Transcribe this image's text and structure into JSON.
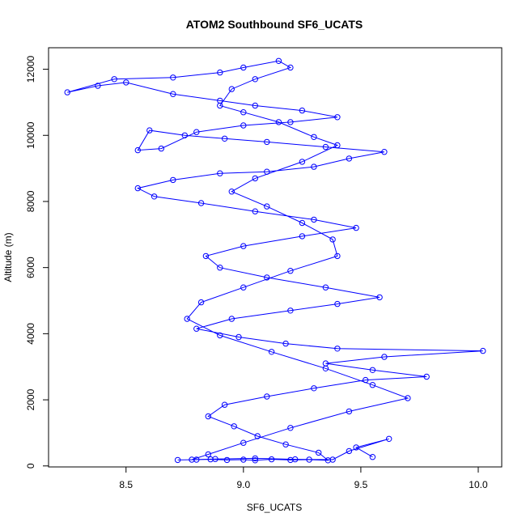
{
  "chart_data": {
    "type": "scatter",
    "title": "ATOM2 Southbound SF6_UCATS",
    "xlabel": "SF6_UCATS",
    "ylabel": "Altitude (m)",
    "xlim": [
      8.17,
      10.1
    ],
    "ylim": [
      -30,
      12650
    ],
    "x_ticks": [
      8.5,
      9.0,
      9.5,
      10.0
    ],
    "x_tick_labels": [
      "8.5",
      "9.0",
      "9.5",
      "10.0"
    ],
    "y_ticks": [
      0,
      2000,
      4000,
      6000,
      8000,
      10000,
      12000
    ],
    "y_tick_labels": [
      "0",
      "2000",
      "4000",
      "6000",
      "8000",
      "10000",
      "12000"
    ],
    "grid": false,
    "marker": "open-circle",
    "connected": true,
    "color": "#0000ff",
    "series": [
      {
        "points": [
          [
            8.72,
            180
          ],
          [
            8.8,
            190
          ],
          [
            8.86,
            200
          ],
          [
            8.93,
            180
          ],
          [
            9.0,
            190
          ],
          [
            9.05,
            170
          ],
          [
            9.12,
            200
          ],
          [
            9.2,
            180
          ],
          [
            9.28,
            190
          ],
          [
            9.36,
            170
          ],
          [
            9.32,
            400
          ],
          [
            9.18,
            650
          ],
          [
            9.06,
            900
          ],
          [
            8.96,
            1200
          ],
          [
            8.85,
            1500
          ],
          [
            8.92,
            1850
          ],
          [
            9.1,
            2100
          ],
          [
            9.3,
            2350
          ],
          [
            9.52,
            2600
          ],
          [
            9.78,
            2700
          ],
          [
            9.55,
            2900
          ],
          [
            9.35,
            3100
          ],
          [
            9.6,
            3300
          ],
          [
            10.02,
            3480
          ],
          [
            9.4,
            3550
          ],
          [
            9.18,
            3700
          ],
          [
            8.98,
            3900
          ],
          [
            8.8,
            4150
          ],
          [
            8.95,
            4450
          ],
          [
            9.2,
            4700
          ],
          [
            9.4,
            4900
          ],
          [
            9.58,
            5100
          ],
          [
            9.35,
            5400
          ],
          [
            9.1,
            5700
          ],
          [
            8.9,
            6000
          ],
          [
            8.84,
            6350
          ],
          [
            9.0,
            6650
          ],
          [
            9.25,
            6950
          ],
          [
            9.48,
            7200
          ],
          [
            9.3,
            7450
          ],
          [
            9.05,
            7700
          ],
          [
            8.82,
            7950
          ],
          [
            8.62,
            8150
          ],
          [
            8.55,
            8400
          ],
          [
            8.7,
            8650
          ],
          [
            8.9,
            8850
          ],
          [
            9.1,
            8900
          ],
          [
            9.3,
            9050
          ],
          [
            9.45,
            9300
          ],
          [
            9.6,
            9500
          ],
          [
            9.35,
            9650
          ],
          [
            9.1,
            9800
          ],
          [
            8.92,
            9900
          ],
          [
            8.75,
            10000
          ],
          [
            8.6,
            10150
          ],
          [
            8.55,
            9550
          ],
          [
            8.65,
            9600
          ],
          [
            8.8,
            10100
          ],
          [
            9.0,
            10300
          ],
          [
            9.2,
            10400
          ],
          [
            9.4,
            10550
          ],
          [
            9.25,
            10750
          ],
          [
            9.05,
            10900
          ],
          [
            8.9,
            11050
          ],
          [
            8.7,
            11250
          ],
          [
            8.5,
            11600
          ],
          [
            8.38,
            11500
          ],
          [
            8.25,
            11300
          ],
          [
            8.45,
            11700
          ],
          [
            8.7,
            11750
          ],
          [
            8.9,
            11900
          ],
          [
            9.0,
            12050
          ],
          [
            9.15,
            12250
          ],
          [
            9.2,
            12050
          ],
          [
            9.05,
            11700
          ],
          [
            8.95,
            11400
          ],
          [
            8.9,
            10900
          ],
          [
            9.0,
            10700
          ],
          [
            9.15,
            10400
          ],
          [
            9.3,
            9950
          ],
          [
            9.4,
            9700
          ],
          [
            9.25,
            9200
          ],
          [
            9.05,
            8700
          ],
          [
            8.95,
            8300
          ],
          [
            9.1,
            7850
          ],
          [
            9.25,
            7350
          ],
          [
            9.38,
            6850
          ],
          [
            9.4,
            6350
          ],
          [
            9.2,
            5900
          ],
          [
            9.0,
            5400
          ],
          [
            8.82,
            4950
          ],
          [
            8.76,
            4450
          ],
          [
            8.9,
            3950
          ],
          [
            9.12,
            3450
          ],
          [
            9.35,
            2950
          ],
          [
            9.55,
            2450
          ],
          [
            9.7,
            2050
          ],
          [
            9.45,
            1650
          ],
          [
            9.2,
            1150
          ],
          [
            9.0,
            700
          ],
          [
            8.85,
            350
          ],
          [
            8.78,
            190
          ],
          [
            8.88,
            210
          ],
          [
            9.05,
            230
          ],
          [
            9.22,
            200
          ],
          [
            9.38,
            190
          ],
          [
            9.45,
            450
          ],
          [
            9.62,
            820
          ],
          [
            9.48,
            560
          ],
          [
            9.55,
            270
          ]
        ]
      }
    ]
  }
}
